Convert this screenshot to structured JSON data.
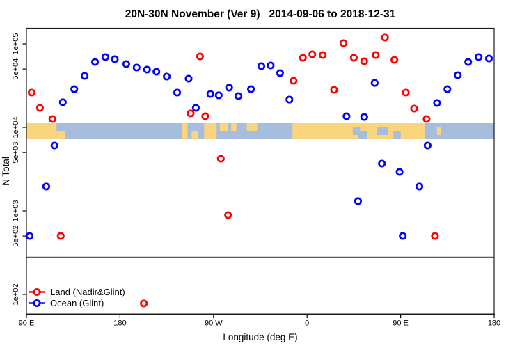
{
  "chart_data": {
    "type": "scatter",
    "title": "20N-30N November (Ver 9)   2014-09-06 to 2018-12-31",
    "xlabel": "Longitude (deg E)",
    "ylabel": "N Total",
    "x_axis": {
      "note": "longitude axis wraps eastward from 90E; internal coordinate is degrees 90..540",
      "range": [
        90,
        540
      ],
      "ticks": [
        {
          "deg": 90,
          "label": "90 E"
        },
        {
          "deg": 180,
          "label": "180"
        },
        {
          "deg": 270,
          "label": "90 W"
        },
        {
          "deg": 360,
          "label": "0"
        },
        {
          "deg": 450,
          "label": "90 E"
        },
        {
          "deg": 540,
          "label": "180"
        }
      ]
    },
    "y_axis": {
      "scale": "log10",
      "range": [
        57,
        155000
      ],
      "ticks": [
        {
          "value": 100000,
          "label": "1e+05"
        },
        {
          "value": 50000,
          "label": "5e+04"
        },
        {
          "value": 10000,
          "label": "1e+04"
        },
        {
          "value": 5000,
          "label": "5e+03"
        },
        {
          "value": 1000,
          "label": "1e+03"
        },
        {
          "value": 500,
          "label": "5e+02"
        },
        {
          "value": 100,
          "label": "1e+02"
        }
      ]
    },
    "divider_value": 277,
    "map_band": {
      "center_value": 10000,
      "ocean_color": "#A7BDDD",
      "land_color": "#FBD47E",
      "land_segments": [
        {
          "from": 90,
          "to": 119,
          "part": "full"
        },
        {
          "from": 119,
          "to": 127,
          "part": "bottom"
        },
        {
          "from": 240,
          "to": 245,
          "part": "full"
        },
        {
          "from": 249,
          "to": 255,
          "part": "bottom"
        },
        {
          "from": 261,
          "to": 273,
          "part": "full"
        },
        {
          "from": 276,
          "to": 284,
          "part": "top"
        },
        {
          "from": 287,
          "to": 292,
          "part": "top"
        },
        {
          "from": 302,
          "to": 312,
          "part": "top"
        },
        {
          "from": 346,
          "to": 473,
          "part": "full"
        },
        {
          "from": 485,
          "to": 489,
          "part": "mid"
        }
      ],
      "ocean_notches": [
        {
          "from": 404,
          "to": 411,
          "part": "mid"
        },
        {
          "from": 409,
          "to": 418,
          "part": "bottom"
        },
        {
          "from": 427,
          "to": 438,
          "part": "mid"
        },
        {
          "from": 443,
          "to": 450,
          "part": "bottom"
        }
      ]
    },
    "series": [
      {
        "name": "Land (Nadir&Glint)",
        "color": "#FF0000",
        "points": [
          [
            95,
            26100
          ],
          [
            103,
            17100
          ],
          [
            115,
            12600
          ],
          [
            123,
            501
          ],
          [
            203,
            78
          ],
          [
            248,
            14700
          ],
          [
            257,
            70800
          ],
          [
            262,
            13600
          ],
          [
            277,
            4220
          ],
          [
            284,
            891
          ],
          [
            347,
            36200
          ],
          [
            356,
            68100
          ],
          [
            365,
            75000
          ],
          [
            375,
            73600
          ],
          [
            386,
            28200
          ],
          [
            395,
            102000
          ],
          [
            405,
            68100
          ],
          [
            415,
            61900
          ],
          [
            426,
            73600
          ],
          [
            435,
            119000
          ],
          [
            444,
            64300
          ],
          [
            455,
            26100
          ],
          [
            463,
            16800
          ],
          [
            475,
            12600
          ],
          [
            483,
            501
          ]
        ]
      },
      {
        "name": "Ocean (Glint)",
        "color": "#0000FF",
        "points": [
          [
            93,
            501
          ],
          [
            109,
            1960
          ],
          [
            117,
            6070
          ],
          [
            125,
            20000
          ],
          [
            136,
            28700
          ],
          [
            146,
            41400
          ],
          [
            156,
            60700
          ],
          [
            166,
            69500
          ],
          [
            175,
            65600
          ],
          [
            186,
            57300
          ],
          [
            196,
            52100
          ],
          [
            206,
            49200
          ],
          [
            215,
            46400
          ],
          [
            225,
            40600
          ],
          [
            235,
            26100
          ],
          [
            246,
            38300
          ],
          [
            253,
            17100
          ],
          [
            267,
            25100
          ],
          [
            275,
            24200
          ],
          [
            285,
            29900
          ],
          [
            294,
            23700
          ],
          [
            306,
            28700
          ],
          [
            316,
            54100
          ],
          [
            325,
            55200
          ],
          [
            334,
            44700
          ],
          [
            343,
            21500
          ],
          [
            398,
            13600
          ],
          [
            409,
            1310
          ],
          [
            415,
            13300
          ],
          [
            425,
            34100
          ],
          [
            432,
            3690
          ],
          [
            449,
            2930
          ],
          [
            452,
            501
          ],
          [
            468,
            1960
          ],
          [
            476,
            6070
          ],
          [
            485,
            19600
          ],
          [
            495,
            28700
          ],
          [
            505,
            42200
          ],
          [
            515,
            60700
          ],
          [
            525,
            69500
          ],
          [
            535,
            66800
          ]
        ]
      }
    ],
    "legend": {
      "position": "bottom-left"
    }
  }
}
